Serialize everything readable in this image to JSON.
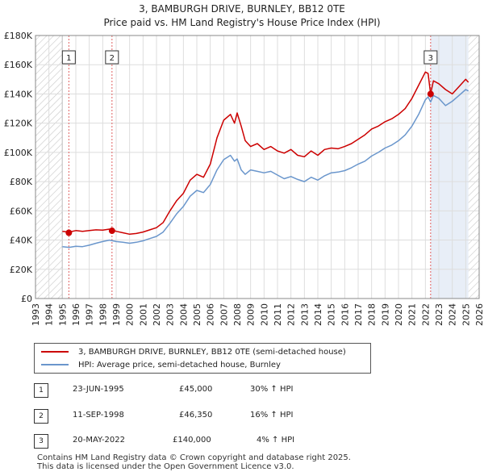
{
  "title": "3, BAMBURGH DRIVE, BURNLEY, BB12 0TE",
  "subtitle": "Price paid vs. HM Land Registry's House Price Index (HPI)",
  "colors": {
    "property": "#cc0000",
    "hpi": "#6a96cc",
    "marker_line": "#e06060",
    "hatch": "#c8c8c8",
    "grid": "#dddddd",
    "shade": "#e8eef7"
  },
  "chart_data": {
    "type": "line",
    "title": "3, BAMBURGH DRIVE, BURNLEY, BB12 0TE",
    "subtitle": "Price paid vs. HM Land Registry's House Price Index (HPI)",
    "xlabel": "",
    "ylabel": "",
    "xlim": [
      1993,
      2026
    ],
    "ylim": [
      0,
      180000
    ],
    "x_ticks": [
      1993,
      1994,
      1995,
      1996,
      1997,
      1998,
      1999,
      2000,
      2001,
      2002,
      2003,
      2004,
      2005,
      2006,
      2007,
      2008,
      2009,
      2010,
      2011,
      2012,
      2013,
      2014,
      2015,
      2016,
      2017,
      2018,
      2019,
      2020,
      2021,
      2022,
      2023,
      2024,
      2025,
      2026
    ],
    "y_ticks": [
      {
        "value": 0,
        "label": "£0"
      },
      {
        "value": 20000,
        "label": "£20K"
      },
      {
        "value": 40000,
        "label": "£40K"
      },
      {
        "value": 60000,
        "label": "£60K"
      },
      {
        "value": 80000,
        "label": "£80K"
      },
      {
        "value": 100000,
        "label": "£100K"
      },
      {
        "value": 120000,
        "label": "£120K"
      },
      {
        "value": 140000,
        "label": "£140K"
      },
      {
        "value": 160000,
        "label": "£160K"
      },
      {
        "value": 180000,
        "label": "£180K"
      }
    ],
    "data_start_year": 1995,
    "data_end_year": 2025.2,
    "series": [
      {
        "name": "3, BAMBURGH DRIVE, BURNLEY, BB12 0TE (semi-detached house)",
        "color": "#cc0000",
        "x": [
          1995.0,
          1995.5,
          1996.0,
          1996.5,
          1997.0,
          1997.5,
          1998.0,
          1998.5,
          1999.0,
          1999.5,
          2000.0,
          2000.5,
          2001.0,
          2001.5,
          2002.0,
          2002.5,
          2003.0,
          2003.5,
          2004.0,
          2004.5,
          2005.0,
          2005.5,
          2006.0,
          2006.5,
          2007.0,
          2007.5,
          2007.8,
          2008.0,
          2008.3,
          2008.6,
          2009.0,
          2009.5,
          2010.0,
          2010.5,
          2011.0,
          2011.5,
          2012.0,
          2012.5,
          2013.0,
          2013.5,
          2014.0,
          2014.5,
          2015.0,
          2015.5,
          2016.0,
          2016.5,
          2017.0,
          2017.5,
          2018.0,
          2018.5,
          2019.0,
          2019.5,
          2020.0,
          2020.5,
          2021.0,
          2021.5,
          2022.0,
          2022.2,
          2022.39,
          2022.6,
          2023.0,
          2023.5,
          2024.0,
          2024.5,
          2025.0,
          2025.2
        ],
        "values": [
          46000,
          45500,
          46500,
          46000,
          46500,
          47000,
          46800,
          47500,
          46000,
          45000,
          44000,
          44500,
          45500,
          47000,
          48500,
          52000,
          60000,
          67000,
          72000,
          81000,
          85000,
          83000,
          92000,
          110000,
          122000,
          126000,
          120000,
          127000,
          118000,
          108000,
          104000,
          106000,
          102000,
          104000,
          101000,
          99500,
          102000,
          98000,
          97000,
          101000,
          98000,
          102000,
          103000,
          102500,
          104000,
          106000,
          109000,
          112000,
          116000,
          118000,
          121000,
          123000,
          126000,
          130000,
          137000,
          146000,
          155000,
          154000,
          140000,
          149000,
          147000,
          143000,
          140000,
          145000,
          150000,
          148000
        ]
      },
      {
        "name": "HPI: Average price, semi-detached house, Burnley",
        "color": "#6a96cc",
        "x": [
          1995.0,
          1995.5,
          1996.0,
          1996.5,
          1997.0,
          1997.5,
          1998.0,
          1998.5,
          1999.0,
          1999.5,
          2000.0,
          2000.5,
          2001.0,
          2001.5,
          2002.0,
          2002.5,
          2003.0,
          2003.5,
          2004.0,
          2004.5,
          2005.0,
          2005.5,
          2006.0,
          2006.5,
          2007.0,
          2007.5,
          2007.8,
          2008.0,
          2008.3,
          2008.6,
          2009.0,
          2009.5,
          2010.0,
          2010.5,
          2011.0,
          2011.5,
          2012.0,
          2012.5,
          2013.0,
          2013.5,
          2014.0,
          2014.5,
          2015.0,
          2015.5,
          2016.0,
          2016.5,
          2017.0,
          2017.5,
          2018.0,
          2018.5,
          2019.0,
          2019.5,
          2020.0,
          2020.5,
          2021.0,
          2021.5,
          2022.0,
          2022.2,
          2022.39,
          2022.6,
          2023.0,
          2023.5,
          2024.0,
          2024.5,
          2025.0,
          2025.2
        ],
        "values": [
          35500,
          35000,
          35800,
          35500,
          36500,
          37800,
          39000,
          40000,
          39000,
          38500,
          37800,
          38500,
          39500,
          41000,
          42500,
          45500,
          51500,
          58000,
          63000,
          70000,
          74000,
          72500,
          78000,
          88000,
          95000,
          98000,
          94000,
          95500,
          88000,
          85000,
          88000,
          87000,
          86000,
          87000,
          84500,
          82000,
          83500,
          81500,
          80000,
          83000,
          81000,
          84000,
          86000,
          86500,
          87500,
          89500,
          92000,
          94000,
          97500,
          100000,
          103000,
          105000,
          108000,
          112000,
          118000,
          126000,
          136000,
          138000,
          134500,
          139000,
          137000,
          132000,
          135000,
          139000,
          143000,
          142000
        ]
      }
    ],
    "transactions": [
      {
        "id": "1",
        "x": 1995.48,
        "price": 45000,
        "date": "23-JUN-1995",
        "price_label": "£45,000",
        "hpi_label": "30% ↑ HPI"
      },
      {
        "id": "2",
        "x": 1998.69,
        "price": 46350,
        "date": "11-SEP-1998",
        "price_label": "£46,350",
        "hpi_label": "16% ↑ HPI"
      },
      {
        "id": "3",
        "x": 2022.39,
        "price": 140000,
        "date": "20-MAY-2022",
        "price_label": "£140,000",
        "hpi_label": "4% ↑ HPI"
      }
    ]
  },
  "legend": {
    "property_label": "3, BAMBURGH DRIVE, BURNLEY, BB12 0TE (semi-detached house)",
    "hpi_label": "HPI: Average price, semi-detached house, Burnley"
  },
  "footer": {
    "line1": "Contains HM Land Registry data © Crown copyright and database right 2025.",
    "line2": "This data is licensed under the Open Government Licence v3.0."
  }
}
